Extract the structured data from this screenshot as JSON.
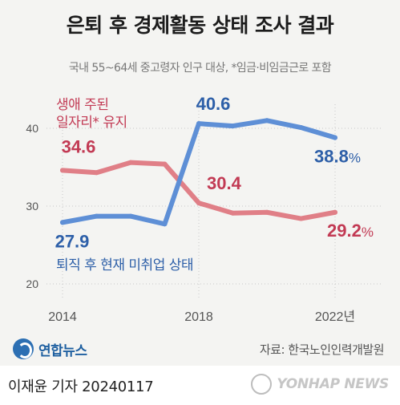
{
  "title": "은퇴 후 경제활동 상태 조사 결과",
  "subtitle": "국내 55~64세 중고령자 인구 대상, *임금·비임금근로 포함",
  "source": "자료: 한국노인인력개발원",
  "logo_text": "연합뉴스",
  "byline": "이재윤 기자  20240117",
  "agency": "YONHAP NEWS",
  "colors": {
    "retained": "#c23a54",
    "retained_line": "#e07f87",
    "retired": "#2d5fa8",
    "retired_line": "#5e8fd6",
    "grid": "#c8c8c8",
    "axis_text": "#555555"
  },
  "chart_data": {
    "type": "line",
    "x": [
      2014,
      2015,
      2016,
      2017,
      2018,
      2019,
      2020,
      2021,
      2022
    ],
    "xticks": [
      "2014",
      "2018",
      "2022년"
    ],
    "yticks": [
      20,
      30,
      40
    ],
    "ylim": [
      20,
      44
    ],
    "series": [
      {
        "name": "생애 주된 일자리* 유지",
        "name_lines": [
          "생애 주된",
          "일자리* 유지"
        ],
        "values": [
          34.6,
          34.3,
          35.6,
          35.4,
          30.4,
          29.1,
          29.2,
          28.4,
          29.2
        ],
        "labels": [
          {
            "index": 0,
            "text": "34.6"
          },
          {
            "index": 4,
            "text": "30.4"
          },
          {
            "index": 8,
            "text": "29.2%"
          }
        ]
      },
      {
        "name": "퇴직 후 현재 미취업 상태",
        "name_lines": [
          "퇴직 후 현재 미취업 상태"
        ],
        "values": [
          27.9,
          28.7,
          28.7,
          27.7,
          40.6,
          40.3,
          41.0,
          40.1,
          38.8
        ],
        "labels": [
          {
            "index": 0,
            "text": "27.9"
          },
          {
            "index": 4,
            "text": "40.6"
          },
          {
            "index": 8,
            "text": "38.8%"
          }
        ]
      }
    ]
  }
}
